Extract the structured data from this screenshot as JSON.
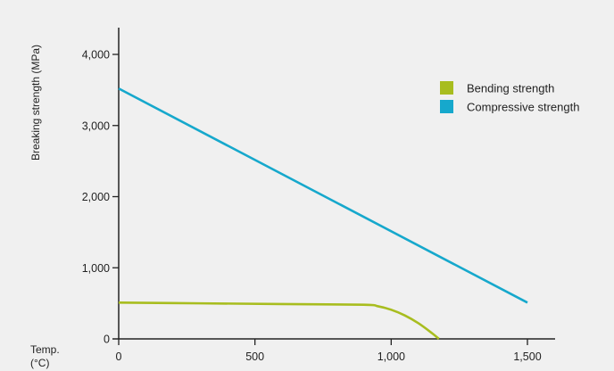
{
  "chart_data": {
    "type": "line",
    "ylabel": "Breaking strength (MPa)",
    "xlabel_lines": [
      "Temp.",
      "(°C)"
    ],
    "xlim": [
      0,
      1600
    ],
    "ylim": [
      0,
      4000
    ],
    "x_ticks": [
      0,
      500,
      1000,
      1500
    ],
    "x_tick_labels": [
      "0",
      "500",
      "1,000",
      "1,500"
    ],
    "y_ticks": [
      0,
      1000,
      2000,
      3000,
      4000
    ],
    "y_tick_labels": [
      "0",
      "1,000",
      "2,000",
      "3,000",
      "4,000"
    ],
    "grid": false,
    "legend_position": "top-right",
    "series": [
      {
        "name": "Bending strength",
        "color": "#a8bd1f",
        "x": [
          0,
          300,
          600,
          900,
          950,
          1000,
          1050,
          1100,
          1150,
          1175
        ],
        "y": [
          510,
          500,
          490,
          480,
          460,
          410,
          330,
          220,
          80,
          0
        ]
      },
      {
        "name": "Compressive strength",
        "color": "#16a8cc",
        "x": [
          0,
          1500
        ],
        "y": [
          3520,
          510
        ]
      }
    ]
  }
}
